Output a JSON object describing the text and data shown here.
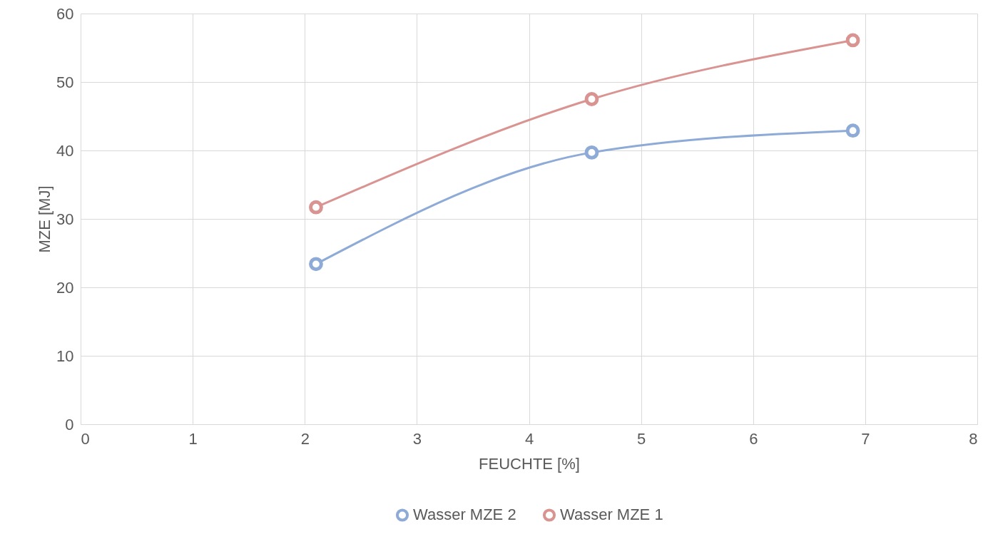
{
  "chart_data": {
    "type": "line",
    "xlabel": "FEUCHTE [%]",
    "ylabel": "MZE [MJ]",
    "xlim": [
      0,
      8
    ],
    "xticks": [
      0,
      1,
      2,
      3,
      4,
      5,
      6,
      7,
      8
    ],
    "ylim": [
      0,
      60
    ],
    "yticks": [
      0,
      10,
      20,
      30,
      40,
      50,
      60
    ],
    "grid": true,
    "legend": "bottom",
    "marker": "circle",
    "line_style": "solid",
    "series": [
      {
        "name": "Wasser MZE 2",
        "color": "#8eaad6",
        "x": [
          2.1,
          4.56,
          6.89
        ],
        "values": [
          23.4,
          39.7,
          42.9
        ]
      },
      {
        "name": "Wasser MZE 1",
        "color": "#d99391",
        "x": [
          2.1,
          4.56,
          6.89
        ],
        "values": [
          31.7,
          47.5,
          56.1
        ]
      }
    ]
  }
}
